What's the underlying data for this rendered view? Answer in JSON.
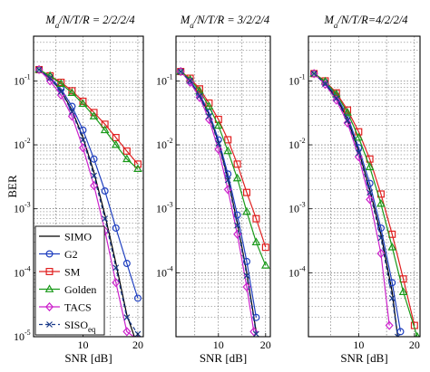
{
  "chart_data": [
    {
      "type": "line",
      "title": "M_a/N/T/R = 2/2/2/4",
      "title_parts": {
        "m": "M",
        "sub": "a",
        "rest": "/N/T/R = 2/2/2/4"
      },
      "xlabel": "SNR [dB]",
      "ylabel": "BER",
      "xlim": [
        1,
        21
      ],
      "ylim": [
        1e-05,
        0.5
      ],
      "yscale": "log",
      "grid": true,
      "legend_position": "lower-left",
      "xticks": [
        10,
        20
      ],
      "xtick_labels": [
        "10",
        "20"
      ],
      "yticks": [
        1e-05,
        0.0001,
        0.001,
        0.01,
        0.1
      ],
      "ytick_labels": [
        {
          "base": "10",
          "exp": "-5"
        },
        {
          "base": "10",
          "exp": "-4"
        },
        {
          "base": "10",
          "exp": "-3"
        },
        {
          "base": "10",
          "exp": "-2"
        },
        {
          "base": "10",
          "exp": "-1"
        }
      ],
      "series": [
        {
          "name": "SIMO",
          "color": "#000000",
          "marker": "none",
          "dash": "solid",
          "x": [
            2,
            4,
            6,
            8,
            10,
            12,
            14,
            16,
            18,
            20
          ],
          "y": [
            0.15,
            0.11,
            0.07,
            0.035,
            0.013,
            0.0037,
            0.0008,
            0.00014,
            2.2e-05,
            7e-06
          ]
        },
        {
          "name": "G2",
          "color": "#1f3fbf",
          "marker": "circle",
          "dash": "solid",
          "x": [
            2,
            4,
            6,
            8,
            10,
            12,
            14,
            16,
            18,
            20
          ],
          "y": [
            0.15,
            0.115,
            0.075,
            0.04,
            0.017,
            0.006,
            0.0019,
            0.0005,
            0.00014,
            4e-05
          ]
        },
        {
          "name": "SM",
          "color": "#e02020",
          "marker": "square",
          "dash": "solid",
          "x": [
            2,
            4,
            6,
            8,
            10,
            12,
            14,
            16,
            18,
            20
          ],
          "y": [
            0.15,
            0.12,
            0.095,
            0.07,
            0.048,
            0.032,
            0.021,
            0.013,
            0.008,
            0.005
          ]
        },
        {
          "name": "Golden",
          "color": "#1a9a1a",
          "marker": "triangle",
          "dash": "solid",
          "x": [
            2,
            4,
            6,
            8,
            10,
            12,
            14,
            16,
            18,
            20
          ],
          "y": [
            0.15,
            0.12,
            0.09,
            0.065,
            0.044,
            0.028,
            0.017,
            0.01,
            0.006,
            0.0042
          ]
        },
        {
          "name": "TACS",
          "color": "#cc22cc",
          "marker": "diamond",
          "dash": "solid",
          "x": [
            2,
            4,
            6,
            8,
            10,
            12,
            14,
            16,
            18,
            20
          ],
          "y": [
            0.15,
            0.1,
            0.06,
            0.028,
            0.009,
            0.0023,
            0.00045,
            7e-05,
            1.2e-05,
            9e-06
          ]
        },
        {
          "name": "SISO",
          "name_sub": "eq",
          "color": "#1a3a8a",
          "marker": "x",
          "dash": "dashed",
          "x": [
            2,
            4,
            6,
            8,
            10,
            12,
            14,
            16,
            18,
            20
          ],
          "y": [
            0.15,
            0.11,
            0.068,
            0.033,
            0.012,
            0.0033,
            0.0007,
            0.00012,
            2e-05,
            1.1e-05
          ]
        }
      ]
    },
    {
      "type": "line",
      "title": "M_a/N/T/R = 3/2/2/4",
      "title_parts": {
        "m": "M",
        "sub": "a",
        "rest": "/N/T/R = 3/2/2/4"
      },
      "xlabel": "SNR [dB]",
      "ylabel": "",
      "xlim": [
        1,
        21
      ],
      "ylim": [
        1e-05,
        0.5
      ],
      "yscale": "log",
      "grid": true,
      "xticks": [
        10,
        20
      ],
      "xtick_labels": [
        "10",
        "20"
      ],
      "yticks": [
        0.0001,
        0.001,
        0.01,
        0.1
      ],
      "ytick_labels": [
        {
          "base": "10",
          "exp": "-4"
        },
        {
          "base": "10",
          "exp": "-3"
        },
        {
          "base": "10",
          "exp": "-2"
        },
        {
          "base": "10",
          "exp": "-1"
        }
      ],
      "series": [
        {
          "name": "SIMO",
          "color": "#000000",
          "marker": "none",
          "dash": "solid",
          "x": [
            2,
            4,
            6,
            8,
            10,
            12,
            14,
            16,
            18
          ],
          "y": [
            0.14,
            0.1,
            0.06,
            0.03,
            0.011,
            0.003,
            0.0006,
            0.0001,
            1.2e-05
          ]
        },
        {
          "name": "G2",
          "color": "#1f3fbf",
          "marker": "circle",
          "dash": "solid",
          "x": [
            2,
            4,
            6,
            8,
            10,
            12,
            14,
            16,
            18
          ],
          "y": [
            0.14,
            0.1,
            0.062,
            0.032,
            0.012,
            0.0035,
            0.0008,
            0.00015,
            2e-05
          ]
        },
        {
          "name": "SM",
          "color": "#e02020",
          "marker": "square",
          "dash": "solid",
          "x": [
            2,
            4,
            6,
            8,
            10,
            12,
            14,
            16,
            18,
            20
          ],
          "y": [
            0.14,
            0.11,
            0.075,
            0.045,
            0.025,
            0.012,
            0.005,
            0.0018,
            0.0007,
            0.00025
          ]
        },
        {
          "name": "Golden",
          "color": "#1a9a1a",
          "marker": "triangle",
          "dash": "solid",
          "x": [
            2,
            4,
            6,
            8,
            10,
            12,
            14,
            16,
            18,
            20
          ],
          "y": [
            0.14,
            0.105,
            0.07,
            0.04,
            0.02,
            0.008,
            0.003,
            0.0009,
            0.0003,
            0.00013
          ]
        },
        {
          "name": "TACS",
          "color": "#cc22cc",
          "marker": "diamond",
          "dash": "solid",
          "x": [
            2,
            4,
            6,
            8,
            10,
            12,
            14,
            16,
            17.5
          ],
          "y": [
            0.14,
            0.095,
            0.055,
            0.025,
            0.0085,
            0.002,
            0.0004,
            6e-05,
            1.2e-05
          ]
        },
        {
          "name": "SISO",
          "name_sub": "eq",
          "color": "#1a3a8a",
          "marker": "x",
          "dash": "dashed",
          "x": [
            2,
            4,
            6,
            8,
            10,
            12,
            14,
            16,
            18
          ],
          "y": [
            0.14,
            0.1,
            0.058,
            0.028,
            0.0105,
            0.0028,
            0.00055,
            9e-05,
            1.1e-05
          ]
        }
      ]
    },
    {
      "type": "line",
      "title": "M_a/N/T/R=4/2/2/4",
      "title_parts": {
        "m": "M",
        "sub": "a",
        "rest": "/N/T/R=4/2/2/4"
      },
      "xlabel": "SNR [dB]",
      "ylabel": "",
      "xlim": [
        1,
        21
      ],
      "ylim": [
        1e-05,
        0.5
      ],
      "yscale": "log",
      "grid": true,
      "xticks": [
        10,
        20
      ],
      "xtick_labels": [
        "10",
        "20"
      ],
      "yticks": [
        0.0001,
        0.001,
        0.01,
        0.1
      ],
      "ytick_labels": [
        {
          "base": "10",
          "exp": "-4"
        },
        {
          "base": "10",
          "exp": "-3"
        },
        {
          "base": "10",
          "exp": "-2"
        },
        {
          "base": "10",
          "exp": "-1"
        }
      ],
      "series": [
        {
          "name": "SIMO",
          "color": "#000000",
          "marker": "none",
          "dash": "solid",
          "x": [
            2,
            4,
            6,
            8,
            10,
            12,
            14,
            16,
            17
          ],
          "y": [
            0.13,
            0.09,
            0.055,
            0.025,
            0.008,
            0.002,
            0.0004,
            5e-05,
            1e-05
          ]
        },
        {
          "name": "G2",
          "color": "#1f3fbf",
          "marker": "circle",
          "dash": "solid",
          "x": [
            2,
            4,
            6,
            8,
            10,
            12,
            14,
            16,
            17.5
          ],
          "y": [
            0.13,
            0.095,
            0.058,
            0.028,
            0.009,
            0.0025,
            0.0005,
            7e-05,
            1.2e-05
          ]
        },
        {
          "name": "SM",
          "color": "#e02020",
          "marker": "square",
          "dash": "solid",
          "x": [
            2,
            4,
            6,
            8,
            10,
            12,
            14,
            16,
            18,
            20
          ],
          "y": [
            0.13,
            0.1,
            0.065,
            0.035,
            0.016,
            0.006,
            0.0017,
            0.0004,
            8e-05,
            1.5e-05
          ]
        },
        {
          "name": "Golden",
          "color": "#1a9a1a",
          "marker": "triangle",
          "dash": "solid",
          "x": [
            2,
            4,
            6,
            8,
            10,
            12,
            14,
            16,
            18,
            20.5
          ],
          "y": [
            0.13,
            0.098,
            0.062,
            0.032,
            0.013,
            0.0045,
            0.0012,
            0.00025,
            5e-05,
            1e-05
          ]
        },
        {
          "name": "TACS",
          "color": "#cc22cc",
          "marker": "diamond",
          "dash": "solid",
          "x": [
            2,
            4,
            6,
            8,
            10,
            12,
            14,
            15.5
          ],
          "y": [
            0.13,
            0.088,
            0.05,
            0.022,
            0.0065,
            0.0014,
            0.0002,
            1.5e-05
          ]
        },
        {
          "name": "SISO",
          "name_sub": "eq",
          "color": "#1a3a8a",
          "marker": "x",
          "dash": "dashed",
          "x": [
            2,
            4,
            6,
            8,
            10,
            12,
            14,
            16,
            17
          ],
          "y": [
            0.13,
            0.09,
            0.053,
            0.024,
            0.0075,
            0.0018,
            0.00035,
            4e-05,
            1e-05
          ]
        }
      ]
    }
  ]
}
